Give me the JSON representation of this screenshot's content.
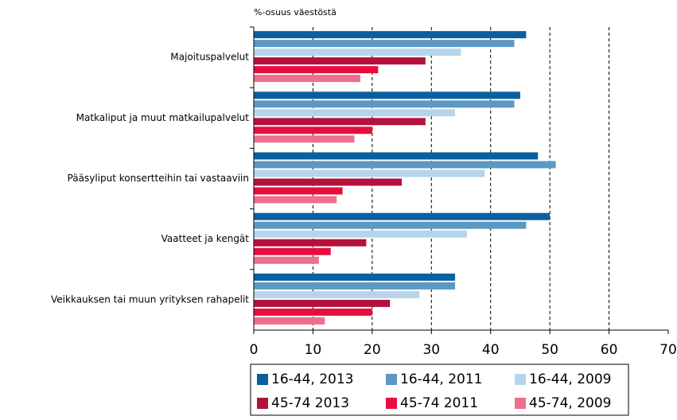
{
  "chart_data": {
    "type": "barh",
    "axis_label": "%-osuus väestöstä",
    "categories": [
      "Majoituspalvelut",
      "Matkaliput ja muut matkailupalvelut",
      "Pääsyliput konsertteihin tai vastaaviin",
      "Vaatteet ja kengät",
      "Veikkauksen tai muun yrityksen rahapelit"
    ],
    "series": [
      {
        "name": "16-44, 2013",
        "color": "#0a5f9e",
        "values": [
          46,
          45,
          48,
          50,
          34
        ]
      },
      {
        "name": "16-44, 2011",
        "color": "#5b98c4",
        "values": [
          44,
          44,
          51,
          46,
          34
        ]
      },
      {
        "name": "16-44, 2009",
        "color": "#b6d5ec",
        "values": [
          35,
          34,
          39,
          36,
          28
        ]
      },
      {
        "name": "45-74 2013",
        "color": "#b3123c",
        "values": [
          29,
          29,
          25,
          19,
          23
        ]
      },
      {
        "name": "45-74 2011",
        "color": "#e60e3e",
        "values": [
          21,
          20,
          15,
          13,
          20
        ]
      },
      {
        "name": "45-74, 2009",
        "color": "#ed6f8b",
        "values": [
          18,
          17,
          14,
          11,
          12
        ]
      }
    ],
    "xlim": [
      0,
      70
    ],
    "xticks": [
      0,
      10,
      20,
      30,
      40,
      50,
      60,
      70
    ],
    "grid": true
  }
}
